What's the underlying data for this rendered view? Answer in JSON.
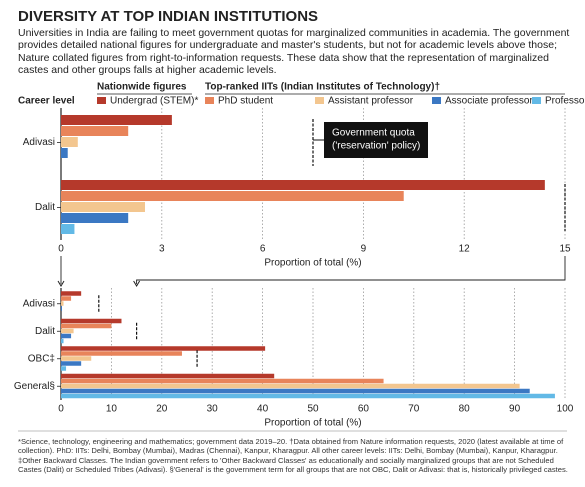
{
  "header": {
    "title": "DIVERSITY AT TOP INDIAN INSTITUTIONS",
    "description": "Universities in India are failing to meet government quotas for marginalized communities in academia. The government provides detailed national figures for undergraduate and master's students, but not for academic levels above those; Nature collated figures from right-to-information requests. These data show that the representation of marginalized castes and other groups falls at higher academic levels."
  },
  "legend": {
    "group_labels": [
      "Nationwide figures",
      "Top-ranked IITs (Indian Institutes of Technology)†"
    ],
    "row_label": "Career level"
  },
  "chart_data": [
    {
      "type": "bar",
      "orientation": "horizontal",
      "categories": [
        "Adivasi",
        "Dalit"
      ],
      "series": [
        {
          "name": "Undergrad (STEM)*",
          "color": "#b5392b",
          "values": [
            3.3,
            14.4
          ]
        },
        {
          "name": "PhD student",
          "color": "#e8845a",
          "values": [
            2.0,
            10.2
          ]
        },
        {
          "name": "Assistant professor",
          "color": "#f3c68f",
          "values": [
            0.5,
            2.5
          ]
        },
        {
          "name": "Associate professor",
          "color": "#3b78c3",
          "values": [
            0.2,
            2.0
          ]
        },
        {
          "name": "Professor",
          "color": "#62b9e6",
          "values": [
            0,
            0.4
          ]
        }
      ],
      "quota": [
        7.5,
        15
      ],
      "annotation": [
        "Government quota",
        "('reservation' policy)"
      ],
      "xlabel": "Proportion of total (%)",
      "xlim": [
        0,
        15
      ],
      "xticks": [
        0,
        3,
        6,
        9,
        12,
        15
      ],
      "grid": true
    },
    {
      "type": "bar",
      "orientation": "horizontal",
      "categories": [
        "Adivasi",
        "Dalit",
        "OBC‡",
        "General§"
      ],
      "series": [
        {
          "values": [
            4,
            12,
            40.5,
            42.3
          ]
        },
        {
          "values": [
            2,
            10,
            24,
            64
          ]
        },
        {
          "values": [
            0.5,
            2.5,
            6,
            91
          ]
        },
        {
          "values": [
            0.2,
            2,
            4,
            93
          ]
        },
        {
          "values": [
            0,
            0.5,
            1,
            98
          ]
        }
      ],
      "quota": [
        7.5,
        15,
        27
      ],
      "xlabel": "Proportion of total (%)",
      "xlim": [
        0,
        100
      ],
      "xticks": [
        0,
        10,
        20,
        30,
        40,
        50,
        60,
        70,
        80,
        90,
        100
      ],
      "grid": true
    }
  ],
  "footnote": "*Science, technology, engineering and mathematics; government data 2019–20. †Data obtained from Nature information requests, 2020 (latest available at time of collection). PhD: IITs: Delhi, Bombay (Mumbai), Madras (Chennai), Kanpur, Kharagpur. All other career levels: IITs: Delhi, Bombay (Mumbai), Kanpur, Kharagpur. ‡Other Backward Classes. The Indian government refers to 'Other Backward Classes' as educationally and socially marginalized groups that are not Scheduled Castes (Dalit) or Scheduled Tribes (Adivasi). §'General' is the government term for all groups that are not OBC, Dalit or Adivasi: that is, historically privileged castes."
}
